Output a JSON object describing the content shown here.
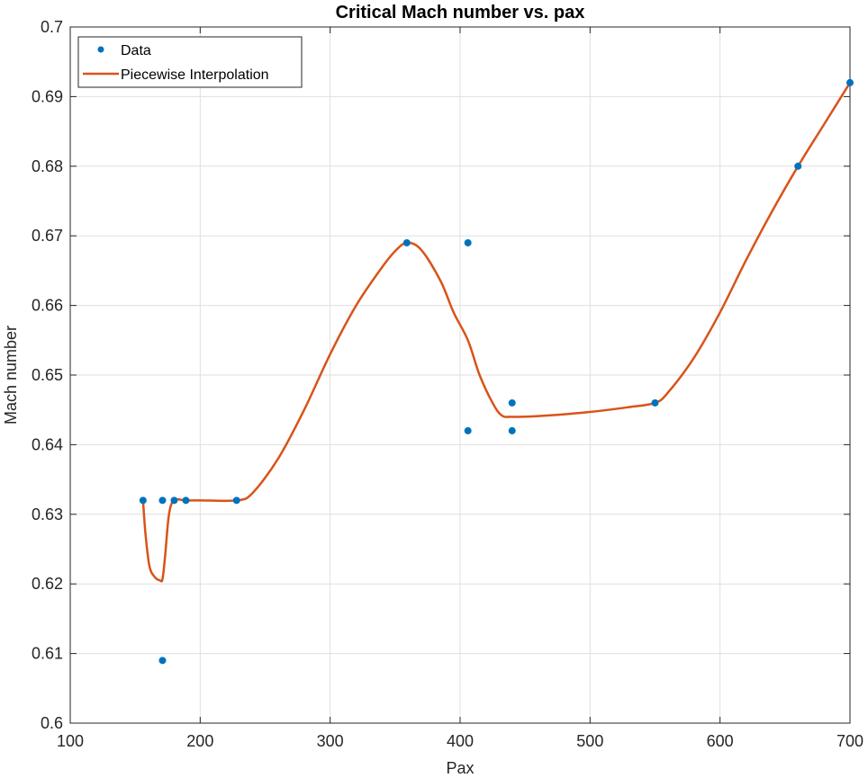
{
  "chart_data": {
    "type": "line",
    "title": "Critical Mach number vs. pax",
    "xlabel": "Pax",
    "ylabel": "Mach number",
    "xlim": [
      100,
      700
    ],
    "ylim": [
      0.6,
      0.7
    ],
    "xticks": [
      100,
      200,
      300,
      400,
      500,
      600,
      700
    ],
    "yticks": [
      0.6,
      0.61,
      0.62,
      0.63,
      0.64,
      0.65,
      0.66,
      0.67,
      0.68,
      0.69,
      0.7
    ],
    "xtick_labels": [
      "100",
      "200",
      "300",
      "400",
      "500",
      "600",
      "700"
    ],
    "ytick_labels": [
      "0.6",
      "0.61",
      "0.62",
      "0.63",
      "0.64",
      "0.65",
      "0.66",
      "0.67",
      "0.68",
      "0.69",
      "0.7"
    ],
    "grid": true,
    "legend_position": "top-left",
    "legend": [
      "Data",
      "Piecewise Interpolation"
    ],
    "series": [
      {
        "name": "Data",
        "kind": "scatter",
        "color": "#0072BD",
        "x": [
          156,
          171,
          171,
          180,
          189,
          228,
          359,
          406,
          406,
          440,
          440,
          550,
          660,
          700
        ],
        "y": [
          0.632,
          0.632,
          0.609,
          0.632,
          0.632,
          0.632,
          0.669,
          0.669,
          0.642,
          0.646,
          0.642,
          0.646,
          0.68,
          0.692
        ]
      },
      {
        "name": "Piecewise Interpolation",
        "kind": "line",
        "color": "#D95319",
        "x": [
          156,
          158,
          161,
          165,
          169,
          171,
          173,
          176,
          180,
          189,
          200,
          228,
          240,
          260,
          280,
          300,
          320,
          340,
          350,
          359,
          370,
          385,
          395,
          406,
          415,
          425,
          432,
          440,
          460,
          500,
          530,
          550,
          560,
          580,
          600,
          620,
          640,
          660,
          680,
          700
        ],
        "y": [
          0.632,
          0.627,
          0.6225,
          0.621,
          0.6205,
          0.6207,
          0.624,
          0.63,
          0.632,
          0.632,
          0.632,
          0.632,
          0.633,
          0.638,
          0.645,
          0.653,
          0.66,
          0.6655,
          0.6678,
          0.669,
          0.668,
          0.6635,
          0.659,
          0.655,
          0.65,
          0.646,
          0.6442,
          0.644,
          0.6441,
          0.6447,
          0.6454,
          0.646,
          0.6475,
          0.6525,
          0.659,
          0.6665,
          0.6735,
          0.68,
          0.686,
          0.692
        ]
      }
    ]
  }
}
